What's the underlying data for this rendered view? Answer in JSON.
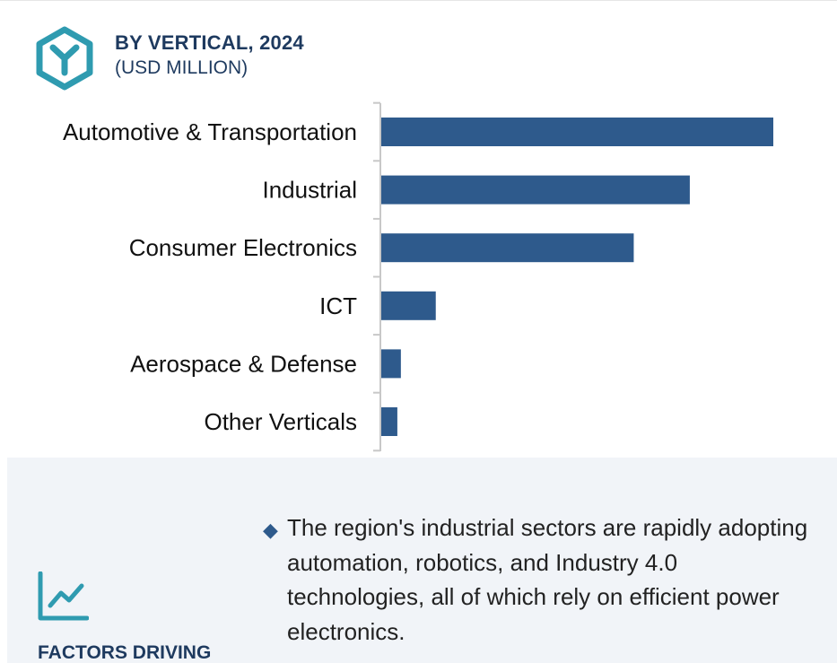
{
  "header": {
    "title": "BY VERTICAL, 2024",
    "subtitle": "(USD MILLION)",
    "icon": "hexagon-y-logo-icon"
  },
  "chart_data": {
    "type": "bar",
    "orientation": "horizontal",
    "title": "BY VERTICAL, 2024",
    "subtitle": "(USD MILLION)",
    "categories": [
      "Automotive & Transportation",
      "Industrial",
      "Consumer Electronics",
      "ICT",
      "Aerospace & Defense",
      "Other Verticals"
    ],
    "values": [
      100,
      78.7,
      64.4,
      13.9,
      5.0,
      4.1
    ],
    "value_scale": "relative (no axis values printed)",
    "xlim": [
      0,
      100
    ],
    "grid": false,
    "legend": "none",
    "bar_color": "#2e5a8c",
    "axis_color": "#c8c8c8"
  },
  "factors": {
    "title": "FACTORS DRIVING",
    "icon": "trend-line-chart-icon",
    "bullets": [
      "The region's industrial sectors are rapidly adopting automation, robotics, and Industry 4.0 technologies, all of which rely on efficient power electronics."
    ],
    "accent_color": "#2f9bb0"
  }
}
